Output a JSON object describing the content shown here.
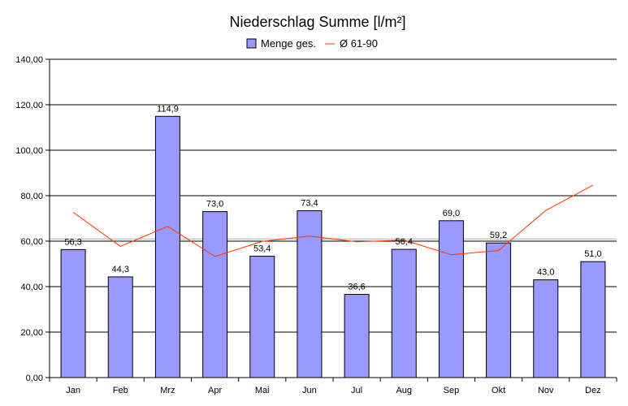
{
  "chart_data": {
    "type": "bar",
    "title": "Niederschlag Summe [l/m²]",
    "categories": [
      "Jan",
      "Feb",
      "Mrz",
      "Apr",
      "Mai",
      "Jun",
      "Jul",
      "Aug",
      "Sep",
      "Okt",
      "Nov",
      "Dez"
    ],
    "y_ticks": [
      "0,00",
      "20,00",
      "40,00",
      "60,00",
      "80,00",
      "100,00",
      "120,00",
      "140,00"
    ],
    "ylim": [
      0,
      140
    ],
    "grid": true,
    "legend_position": "top",
    "series": [
      {
        "name": "Menge ges.",
        "type": "bar",
        "color": "#9999ff",
        "values": [
          56.3,
          44.3,
          114.9,
          73.0,
          53.4,
          73.4,
          36.6,
          56.4,
          69.0,
          59.2,
          43.0,
          51.0
        ],
        "labels": [
          "56,3",
          "44,3",
          "114,9",
          "73,0",
          "53,4",
          "73,4",
          "36,6",
          "56,4",
          "69,0",
          "59,2",
          "43,0",
          "51,0"
        ]
      },
      {
        "name": "Ø 61-90",
        "type": "line",
        "color": "#ff3300",
        "values": [
          72.7,
          57.7,
          66.5,
          53.3,
          59.9,
          62.2,
          59.7,
          60.5,
          54.0,
          55.9,
          73.5,
          84.6
        ]
      }
    ]
  }
}
